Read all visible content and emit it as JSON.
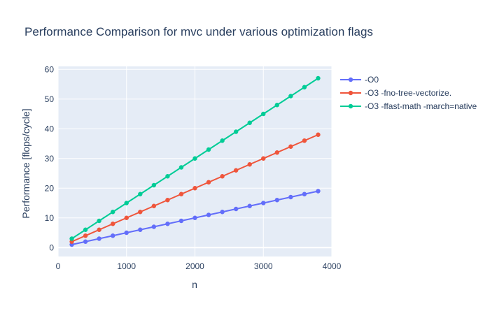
{
  "chart_data": {
    "type": "line",
    "title": "Performance Comparison for mvc under various optimization flags",
    "xlabel": "n",
    "ylabel": "Performance [flops/cycle]",
    "xlim": [
      0,
      4000
    ],
    "ylim": [
      -3,
      61
    ],
    "xticks": [
      0,
      1000,
      2000,
      3000,
      4000
    ],
    "yticks": [
      0,
      10,
      20,
      30,
      40,
      50,
      60
    ],
    "grid": true,
    "legend_position": "right",
    "x": [
      200,
      400,
      600,
      800,
      1000,
      1200,
      1400,
      1600,
      1800,
      2000,
      2200,
      2400,
      2600,
      2800,
      3000,
      3200,
      3400,
      3600,
      3800
    ],
    "series": [
      {
        "name": "-O0",
        "color": "#636efa",
        "values": [
          1,
          2,
          3,
          4,
          5,
          6,
          7,
          8,
          9,
          10,
          11,
          12,
          13,
          14,
          15,
          16,
          17,
          18,
          19
        ]
      },
      {
        "name": "-O3 -fno-tree-vectorize.",
        "color": "#ef553b",
        "values": [
          2,
          4,
          6,
          8,
          10,
          12,
          14,
          16,
          18,
          20,
          22,
          24,
          26,
          28,
          30,
          32,
          34,
          36,
          38
        ]
      },
      {
        "name": "-O3 -ffast-math -march=native",
        "color": "#00cc96",
        "values": [
          3,
          6,
          9,
          12,
          15,
          18,
          21,
          24,
          27,
          30,
          33,
          36,
          39,
          42,
          45,
          48,
          51,
          54,
          57
        ]
      }
    ]
  }
}
